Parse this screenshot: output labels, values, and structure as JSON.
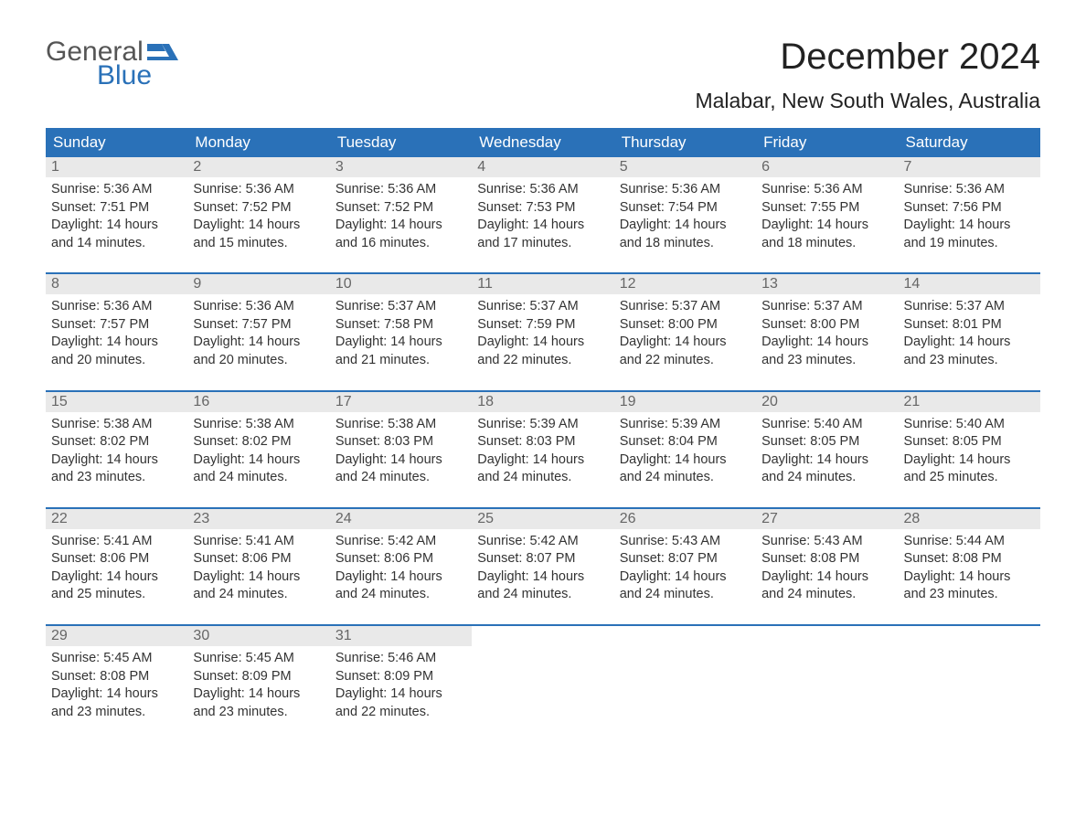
{
  "logo": {
    "general": "General",
    "blue": "Blue"
  },
  "title": "December 2024",
  "location": "Malabar, New South Wales, Australia",
  "colors": {
    "header_bg": "#2a71b8",
    "header_text": "#ffffff",
    "daynum_bg": "#e9e9e9",
    "daynum_text": "#666666",
    "body_text": "#333333",
    "week_divider": "#2a71b8",
    "page_bg": "#ffffff"
  },
  "dow": [
    "Sunday",
    "Monday",
    "Tuesday",
    "Wednesday",
    "Thursday",
    "Friday",
    "Saturday"
  ],
  "font": {
    "title_size": 40,
    "location_size": 23,
    "dow_size": 17,
    "daynum_size": 16,
    "body_size": 14.5
  },
  "calendar": {
    "type": "calendar-grid",
    "columns": 7,
    "labels": {
      "sunrise": "Sunrise:",
      "sunset": "Sunset:",
      "daylight": "Daylight:"
    },
    "days": [
      {
        "n": 1,
        "sr": "5:36 AM",
        "ss": "7:51 PM",
        "dl": "14 hours and 14 minutes."
      },
      {
        "n": 2,
        "sr": "5:36 AM",
        "ss": "7:52 PM",
        "dl": "14 hours and 15 minutes."
      },
      {
        "n": 3,
        "sr": "5:36 AM",
        "ss": "7:52 PM",
        "dl": "14 hours and 16 minutes."
      },
      {
        "n": 4,
        "sr": "5:36 AM",
        "ss": "7:53 PM",
        "dl": "14 hours and 17 minutes."
      },
      {
        "n": 5,
        "sr": "5:36 AM",
        "ss": "7:54 PM",
        "dl": "14 hours and 18 minutes."
      },
      {
        "n": 6,
        "sr": "5:36 AM",
        "ss": "7:55 PM",
        "dl": "14 hours and 18 minutes."
      },
      {
        "n": 7,
        "sr": "5:36 AM",
        "ss": "7:56 PM",
        "dl": "14 hours and 19 minutes."
      },
      {
        "n": 8,
        "sr": "5:36 AM",
        "ss": "7:57 PM",
        "dl": "14 hours and 20 minutes."
      },
      {
        "n": 9,
        "sr": "5:36 AM",
        "ss": "7:57 PM",
        "dl": "14 hours and 20 minutes."
      },
      {
        "n": 10,
        "sr": "5:37 AM",
        "ss": "7:58 PM",
        "dl": "14 hours and 21 minutes."
      },
      {
        "n": 11,
        "sr": "5:37 AM",
        "ss": "7:59 PM",
        "dl": "14 hours and 22 minutes."
      },
      {
        "n": 12,
        "sr": "5:37 AM",
        "ss": "8:00 PM",
        "dl": "14 hours and 22 minutes."
      },
      {
        "n": 13,
        "sr": "5:37 AM",
        "ss": "8:00 PM",
        "dl": "14 hours and 23 minutes."
      },
      {
        "n": 14,
        "sr": "5:37 AM",
        "ss": "8:01 PM",
        "dl": "14 hours and 23 minutes."
      },
      {
        "n": 15,
        "sr": "5:38 AM",
        "ss": "8:02 PM",
        "dl": "14 hours and 23 minutes."
      },
      {
        "n": 16,
        "sr": "5:38 AM",
        "ss": "8:02 PM",
        "dl": "14 hours and 24 minutes."
      },
      {
        "n": 17,
        "sr": "5:38 AM",
        "ss": "8:03 PM",
        "dl": "14 hours and 24 minutes."
      },
      {
        "n": 18,
        "sr": "5:39 AM",
        "ss": "8:03 PM",
        "dl": "14 hours and 24 minutes."
      },
      {
        "n": 19,
        "sr": "5:39 AM",
        "ss": "8:04 PM",
        "dl": "14 hours and 24 minutes."
      },
      {
        "n": 20,
        "sr": "5:40 AM",
        "ss": "8:05 PM",
        "dl": "14 hours and 24 minutes."
      },
      {
        "n": 21,
        "sr": "5:40 AM",
        "ss": "8:05 PM",
        "dl": "14 hours and 25 minutes."
      },
      {
        "n": 22,
        "sr": "5:41 AM",
        "ss": "8:06 PM",
        "dl": "14 hours and 25 minutes."
      },
      {
        "n": 23,
        "sr": "5:41 AM",
        "ss": "8:06 PM",
        "dl": "14 hours and 24 minutes."
      },
      {
        "n": 24,
        "sr": "5:42 AM",
        "ss": "8:06 PM",
        "dl": "14 hours and 24 minutes."
      },
      {
        "n": 25,
        "sr": "5:42 AM",
        "ss": "8:07 PM",
        "dl": "14 hours and 24 minutes."
      },
      {
        "n": 26,
        "sr": "5:43 AM",
        "ss": "8:07 PM",
        "dl": "14 hours and 24 minutes."
      },
      {
        "n": 27,
        "sr": "5:43 AM",
        "ss": "8:08 PM",
        "dl": "14 hours and 24 minutes."
      },
      {
        "n": 28,
        "sr": "5:44 AM",
        "ss": "8:08 PM",
        "dl": "14 hours and 23 minutes."
      },
      {
        "n": 29,
        "sr": "5:45 AM",
        "ss": "8:08 PM",
        "dl": "14 hours and 23 minutes."
      },
      {
        "n": 30,
        "sr": "5:45 AM",
        "ss": "8:09 PM",
        "dl": "14 hours and 23 minutes."
      },
      {
        "n": 31,
        "sr": "5:46 AM",
        "ss": "8:09 PM",
        "dl": "14 hours and 22 minutes."
      }
    ]
  }
}
